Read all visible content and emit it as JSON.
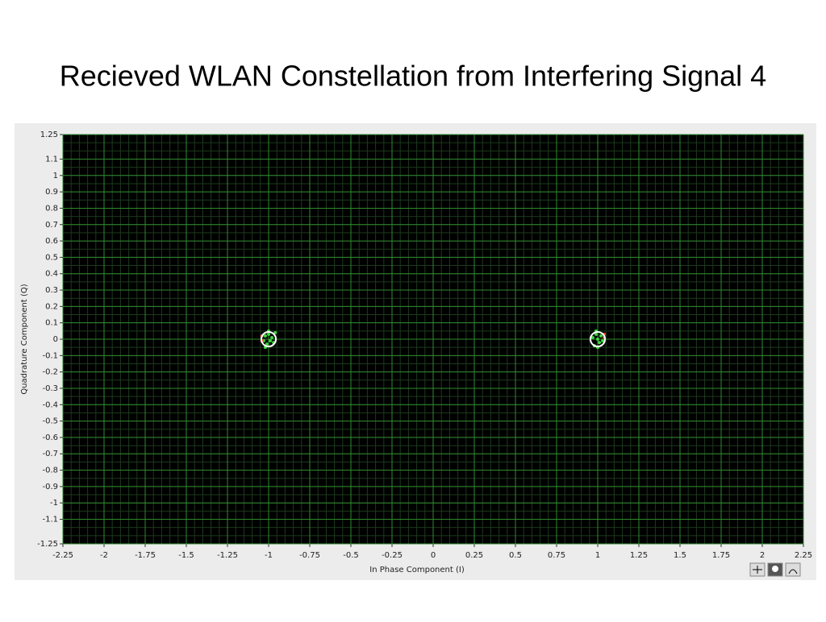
{
  "chart_data": {
    "type": "scatter",
    "title": "Recieved WLAN Constellation from Interfering Signal 4",
    "x_label": "In Phase Component (I)",
    "y_label": "Quadrature Component (Q)",
    "xlim": [
      -2.25,
      2.25
    ],
    "ylim": [
      -1.25,
      1.25
    ],
    "xticks": [
      -2.25,
      -2,
      -1.75,
      -1.5,
      -1.25,
      -1,
      -0.75,
      -0.5,
      -0.25,
      0,
      0.25,
      0.5,
      0.75,
      1,
      1.25,
      1.5,
      1.75,
      2,
      2.25
    ],
    "yticks": [
      1.25,
      1.1,
      1,
      0.9,
      0.8,
      0.7,
      0.6,
      0.5,
      0.4,
      0.3,
      0.2,
      0.1,
      0,
      -0.1,
      -0.2,
      -0.3,
      -0.4,
      -0.5,
      -0.6,
      -0.7,
      -0.8,
      -0.9,
      -1,
      -1.1,
      -1.25
    ],
    "grid": true,
    "series": [
      {
        "color": "#3fd43f",
        "marker": "dot",
        "x": [
          -1.02,
          -0.99,
          -1.0,
          -1.01,
          -0.98,
          -1.03,
          -0.97,
          -1.0,
          -1.02,
          -0.96,
          1.0,
          0.99,
          1.01,
          0.98,
          1.02,
          0.97,
          1.03,
          1.0,
          0.99,
          1.04
        ],
        "y": [
          0.02,
          -0.01,
          0.03,
          -0.03,
          0.01,
          -0.01,
          -0.02,
          0.05,
          -0.05,
          0.04,
          0.0,
          0.03,
          -0.02,
          -0.04,
          0.02,
          0.01,
          -0.01,
          -0.05,
          0.05,
          0.03
        ]
      },
      {
        "color": "#ff3030",
        "marker": "dot",
        "x": [
          -1.04,
          -1.04,
          1.04,
          1.04
        ],
        "y": [
          0.02,
          -0.01,
          0.01,
          0.03
        ]
      },
      {
        "color": "#ffffff",
        "marker": "ring",
        "x": [
          -1,
          1
        ],
        "y": [
          0,
          0
        ]
      }
    ]
  }
}
